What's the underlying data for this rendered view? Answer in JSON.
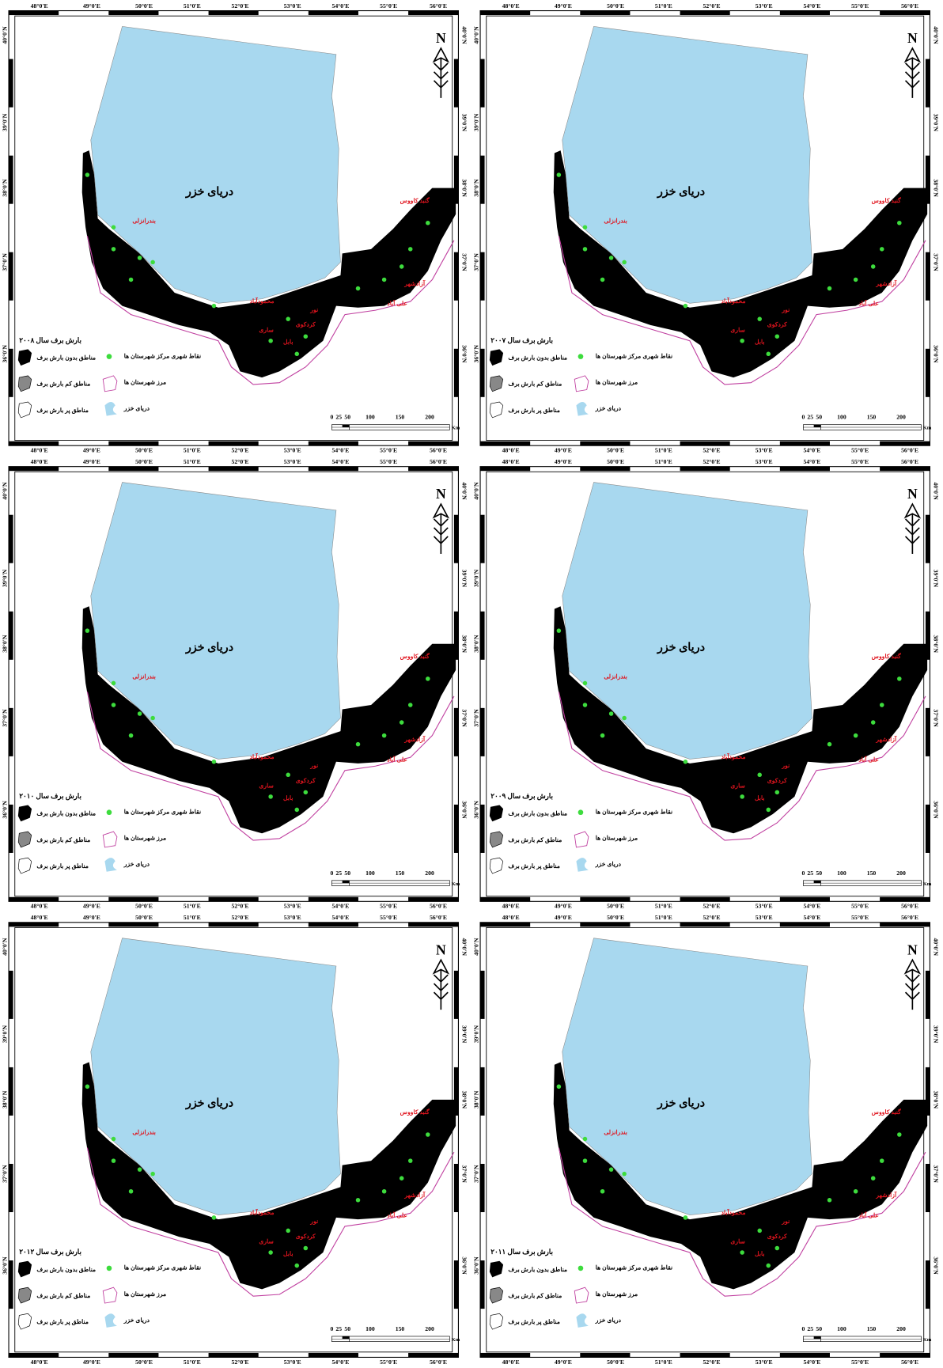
{
  "map": {
    "sea_label": "دریای خزر",
    "north": "N",
    "lon_labels": [
      "48°0'E",
      "49°0'E",
      "50°0'E",
      "51°0'E",
      "52°0'E",
      "53°0'E",
      "54°0'E",
      "55°0'E",
      "56°0'E"
    ],
    "lat_labels": [
      "40°0'N",
      "39°0'N",
      "38°0'N",
      "37°0'N",
      "36°0'N"
    ],
    "legend": [
      "نقاط شهری مرکز شهرستان ها",
      "مناطق بدون بارش برف",
      "مرز شهرستان ها",
      "مناطق کم بارش برف",
      "دریای خزر",
      "مناطق پر بارش برف"
    ],
    "scale_ticks": [
      0,
      25,
      50,
      100,
      150,
      200
    ],
    "scale_unit": "Km",
    "city_labels": [
      "بندرانزلی",
      "محمودآباد",
      "گنبد کاووس",
      "آزادشهر",
      "کردکوی",
      "علی آباد",
      "بابل",
      "ساری",
      "نور"
    ]
  },
  "panels": [
    {
      "title": "بارش برف سال ۲۰۰۸"
    },
    {
      "title": "بارش برف سال ۲۰۰۷"
    },
    {
      "title": "بارش برف سال ۲۰۱۰"
    },
    {
      "title": "بارش برف سال ۲۰۰۹"
    },
    {
      "title": "بارش برف سال ۲۰۱۲"
    },
    {
      "title": "بارش برف سال ۲۰۱۱"
    }
  ]
}
